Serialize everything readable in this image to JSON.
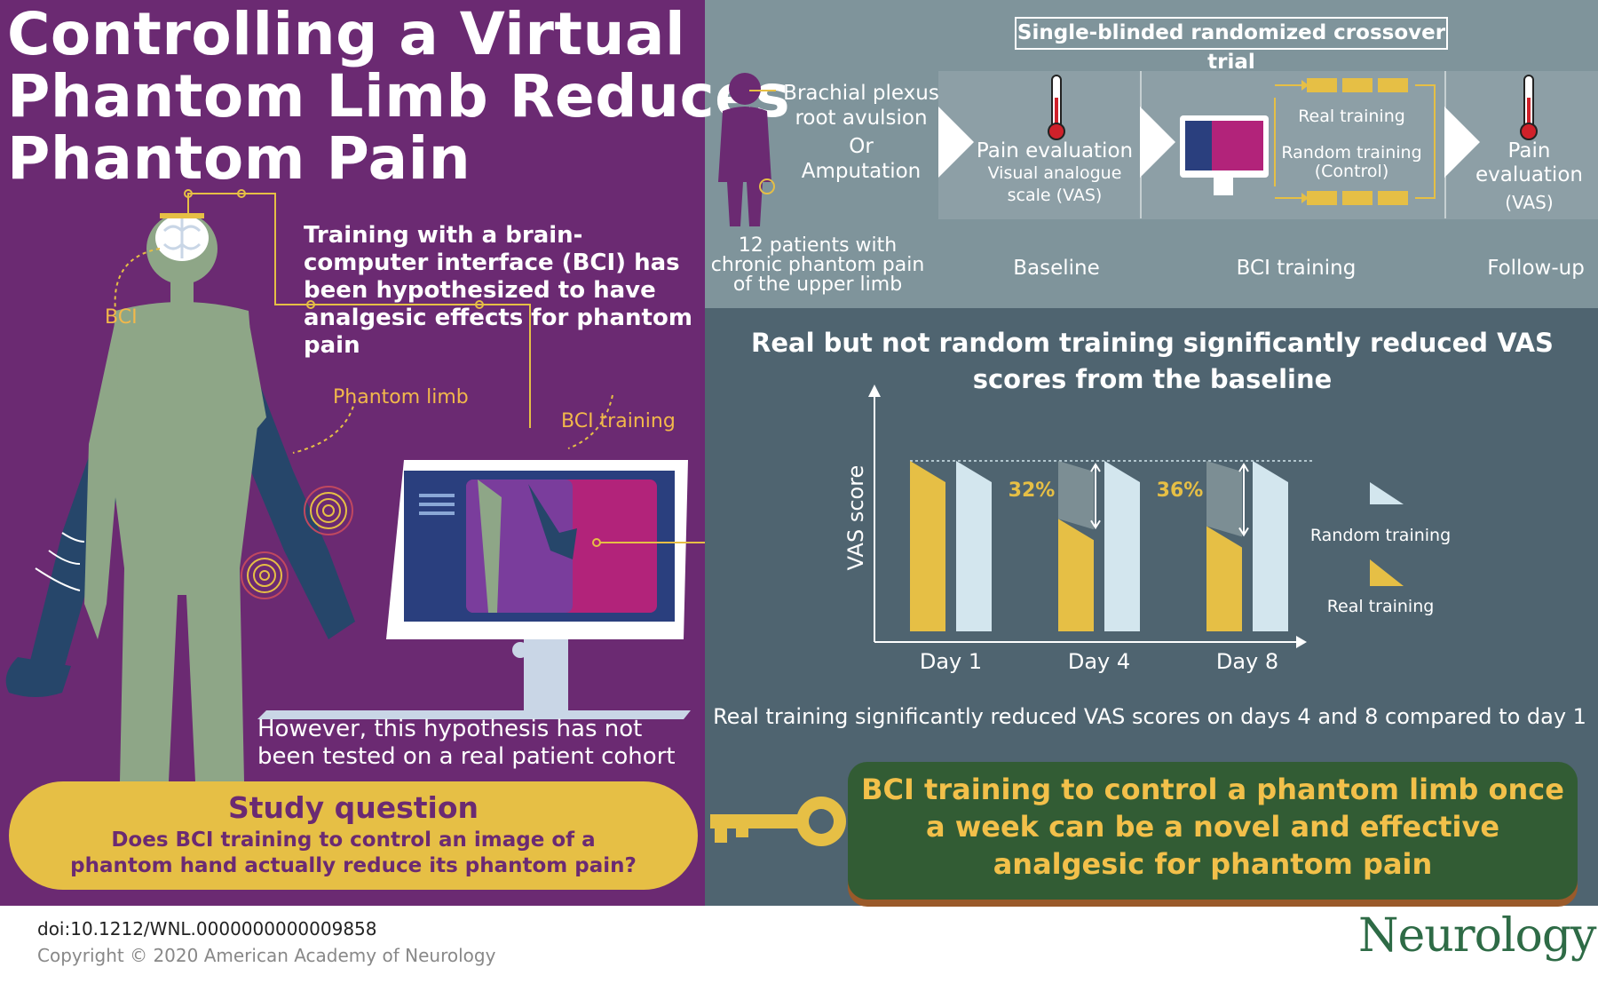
{
  "title": {
    "line1": "Controlling a Virtual",
    "line2": "Phantom Limb Reduces",
    "line3": "Phantom Pain"
  },
  "left_panel": {
    "hypothesis": "Training with a brain-computer interface (BCI) has been hypothesized to have analgesic effects for phantom pain",
    "label_bci": "BCI",
    "label_phantom_limb": "Phantom limb",
    "label_bci_training": "BCI training",
    "caveat": "However, this hypothesis has not been tested on a real patient cohort",
    "study_question_title": "Study question",
    "study_question_text": "Does BCI training to control an image of a phantom hand actually reduce its phantom pain?"
  },
  "design": {
    "trial_type": "Single-blinded randomized crossover trial",
    "condition_a": "Brachial plexus root avulsion",
    "condition_or": "Or",
    "condition_b": "Amputation",
    "pain_eval_title": "Pain evaluation",
    "pain_eval_scale_line1": "Visual analogue",
    "pain_eval_scale_line2": "scale (VAS)",
    "real_training": "Real training",
    "random_training_line1": "Random training",
    "random_training_line2": "(Control)",
    "pain_eval2_line1": "Pain",
    "pain_eval2_line2": "evaluation",
    "pain_eval2_line3": "(VAS)",
    "patients_line1": "12 patients with",
    "patients_line2": "chronic phantom pain",
    "patients_line3": "of the upper limb",
    "phase_baseline": "Baseline",
    "phase_training": "BCI training",
    "phase_followup": "Follow-up"
  },
  "results": {
    "title": "Real but not random training significantly reduced VAS scores from the baseline",
    "note": "Real training significantly reduced VAS scores on days 4 and 8 compared to day 1"
  },
  "chart_data": {
    "type": "bar",
    "ylabel": "VAS score",
    "categories": [
      "Day 1",
      "Day 4",
      "Day 8"
    ],
    "series": [
      {
        "name": "Real training",
        "values": [
          100,
          68,
          64
        ],
        "color": "#e6bf45"
      },
      {
        "name": "Random training",
        "values": [
          100,
          100,
          100
        ],
        "color": "#d3e6ee"
      }
    ],
    "annotations": [
      {
        "category": "Day 4",
        "text": "32%"
      },
      {
        "category": "Day 8",
        "text": "36%"
      }
    ],
    "ylim": [
      0,
      125
    ],
    "legend": "right",
    "grid": false
  },
  "conclusion": "BCI training to control a phantom limb once a week can be a novel and effective analgesic for phantom pain",
  "footer": {
    "doi": "doi:10.1212/WNL.0000000000009858",
    "copyright": "Copyright © 2020 American Academy of Neurology",
    "journal": "Neurology"
  },
  "colors": {
    "purple_bg": "#6b2a72",
    "slate_bg": "#4f6470",
    "gray_bg": "#7f949b",
    "yellow": "#e6bf45",
    "light_blue": "#d3e6ee",
    "green": "#325c34",
    "body_green": "#8ea687"
  }
}
